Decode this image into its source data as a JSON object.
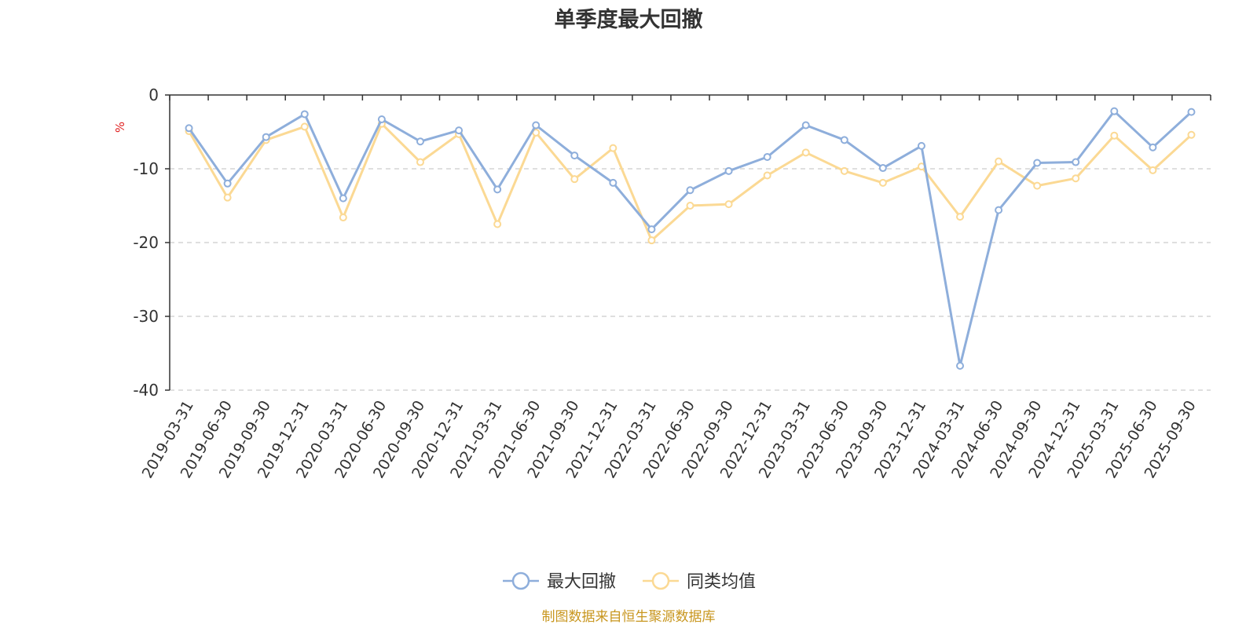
{
  "chart_data": {
    "type": "line",
    "title": "单季度最大回撤",
    "ylabel": "%",
    "ylim": [
      -40,
      0
    ],
    "yticks": [
      0,
      -10,
      -20,
      -30,
      -40
    ],
    "grid": true,
    "legend_position": "bottom-center",
    "x": [
      "2019-03-31",
      "2019-06-30",
      "2019-09-30",
      "2019-12-31",
      "2020-03-31",
      "2020-06-30",
      "2020-09-30",
      "2020-12-31",
      "2021-03-31",
      "2021-06-30",
      "2021-09-30",
      "2021-12-31",
      "2022-03-31",
      "2022-06-30",
      "2022-09-30",
      "2022-12-31",
      "2023-03-31",
      "2023-06-30",
      "2023-09-30",
      "2023-12-31",
      "2024-03-31",
      "2024-06-30",
      "2024-09-30",
      "2024-12-31",
      "2025-03-31",
      "2025-06-30",
      "2025-09-30"
    ],
    "series": [
      {
        "name": "最大回撤",
        "color": "#8eaedb",
        "values": [
          -4.5,
          -12.0,
          -5.7,
          -2.6,
          -14.0,
          -3.3,
          -6.3,
          -4.8,
          -12.8,
          -4.1,
          -8.2,
          -11.9,
          -18.2,
          -12.9,
          -10.3,
          -8.4,
          -4.1,
          -6.1,
          -9.9,
          -6.9,
          -36.7,
          -15.6,
          -9.2,
          -9.1,
          -2.2,
          -7.1,
          -2.3
        ]
      },
      {
        "name": "同类均值",
        "color": "#fbd994",
        "values": [
          -4.9,
          -13.9,
          -6.1,
          -4.3,
          -16.6,
          -3.9,
          -9.1,
          -5.3,
          -17.5,
          -5.1,
          -11.4,
          -7.2,
          -19.7,
          -15.0,
          -14.8,
          -10.9,
          -7.8,
          -10.3,
          -11.9,
          -9.7,
          -16.5,
          -9.0,
          -12.3,
          -11.3,
          -5.5,
          -10.2,
          -5.4
        ]
      }
    ],
    "source": "制图数据来自恒生聚源数据库"
  }
}
